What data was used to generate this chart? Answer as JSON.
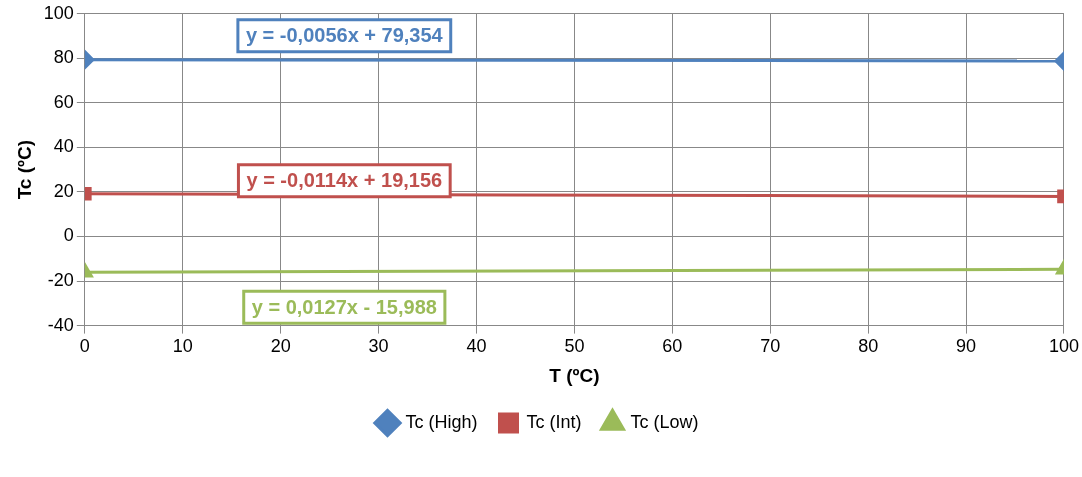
{
  "chart_data": {
    "type": "line",
    "xlabel": "T (ºC)",
    "ylabel": "Tc (ºC)",
    "x": [
      0,
      100
    ],
    "series": [
      {
        "name": "Tc (High)",
        "color": "#4f81bd",
        "marker": "diamond",
        "values": [
          79.4,
          78.8
        ]
      },
      {
        "name": "Tc (Int)",
        "color": "#c0504d",
        "marker": "square",
        "values": [
          19.2,
          18
        ]
      },
      {
        "name": "Tc (Low)",
        "color": "#9bbb59",
        "marker": "triangle",
        "values": [
          -16,
          -14.7
        ]
      }
    ],
    "xlim": [
      0,
      100
    ],
    "xticks": [
      0,
      10,
      20,
      30,
      40,
      50,
      60,
      70,
      80,
      90,
      100
    ],
    "ylim": [
      -40,
      100
    ],
    "yticks": [
      -40,
      -20,
      0,
      20,
      40,
      60,
      80,
      100
    ],
    "grid": true,
    "legend": "bottom",
    "annotations": [
      "y = -0,0056x + 79,354",
      "y = -0,0114x + 19,156",
      "y = 0,0127x - 15,988"
    ]
  }
}
